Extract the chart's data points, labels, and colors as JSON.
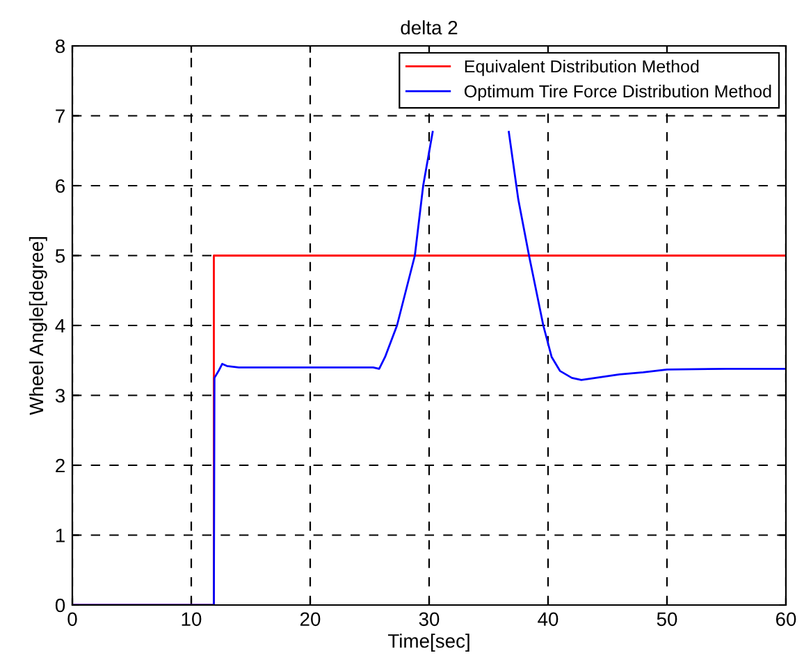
{
  "chart_data": {
    "type": "line",
    "title": "delta 2",
    "xlabel": "Time[sec]",
    "ylabel": "Wheel Angle[degree]",
    "xlim": [
      0,
      60
    ],
    "ylim": [
      0,
      8
    ],
    "xticks": [
      0,
      10,
      20,
      30,
      40,
      50,
      60
    ],
    "yticks": [
      0,
      1,
      2,
      3,
      4,
      5,
      6,
      7,
      8
    ],
    "grid": true,
    "legend": "top right",
    "series": [
      {
        "name": "Equivalent Distribution Method",
        "color": "#ff0000",
        "x": [
          0,
          11.9,
          11.9,
          60
        ],
        "values": [
          0,
          0,
          5,
          5
        ]
      },
      {
        "name": "Optimum Tire Force Distribution Method",
        "color": "#0000ff",
        "x": [
          0,
          11.9,
          11.95,
          12.3,
          12.6,
          13,
          14,
          25.3,
          25.8,
          26.3,
          27.3,
          28.8,
          29.5,
          30.3,
          30.8,
          31.8,
          32.4,
          33,
          35.3,
          35.7,
          36.2,
          36.7,
          37.5,
          38.4,
          39.6,
          40.3,
          41,
          42,
          42.8,
          44,
          46,
          48,
          50,
          55,
          60
        ],
        "values": [
          0,
          0,
          3.25,
          3.35,
          3.45,
          3.42,
          3.4,
          3.4,
          3.38,
          3.55,
          4,
          5,
          6,
          6.77,
          null,
          null,
          null,
          null,
          null,
          null,
          null,
          6.77,
          5.8,
          5,
          4,
          3.55,
          3.35,
          3.25,
          3.22,
          3.25,
          3.3,
          3.33,
          3.37,
          3.38,
          3.38
        ]
      }
    ]
  }
}
